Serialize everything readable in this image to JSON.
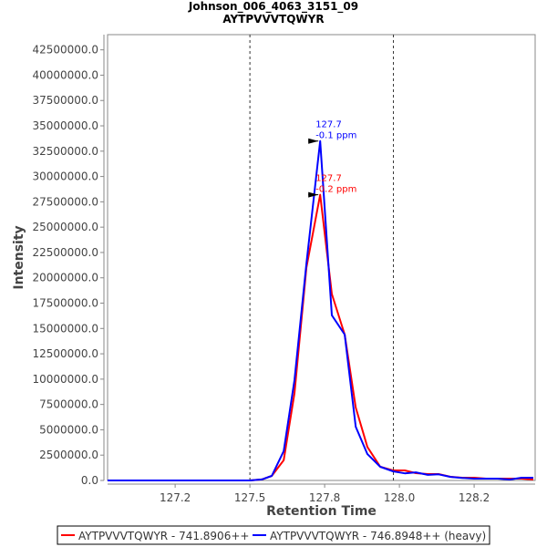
{
  "chart_data": {
    "type": "line",
    "title": "Johnson_006_4063_3151_09",
    "subtitle": "AYTPVVVTQWYR",
    "xlabel": "Retention Time",
    "ylabel": "Intensity",
    "xlim": [
      127.024,
      128.454
    ],
    "ylim": [
      0,
      44000000
    ],
    "x_ticks": [
      127.25,
      127.5,
      127.75,
      128.0,
      128.25
    ],
    "x_tick_labels": [
      "127.2",
      "127.5",
      "127.8",
      "128.0",
      "128.2"
    ],
    "y_ticks": [
      0,
      2500000,
      5000000,
      7500000,
      10000000,
      12500000,
      15000000,
      17500000,
      20000000,
      22500000,
      25000000,
      27500000,
      30000000,
      32500000,
      35000000,
      37500000,
      40000000,
      42500000
    ],
    "y_tick_labels": [
      "0.0",
      "2500000.0",
      "5000000.0",
      "7500000.0",
      "10000000.0",
      "12500000.0",
      "15000000.0",
      "17500000.0",
      "20000000.0",
      "22500000.0",
      "25000000.0",
      "27500000.0",
      "30000000.0",
      "32500000.0",
      "35000000.0",
      "37500000.0",
      "40000000.0",
      "42500000.0"
    ],
    "grid": false,
    "vertical_markers": [
      127.5,
      127.98
    ],
    "x": [
      127.024,
      127.1,
      127.2,
      127.3,
      127.4,
      127.5,
      127.54,
      127.573,
      127.613,
      127.649,
      127.689,
      127.735,
      127.774,
      127.817,
      127.854,
      127.893,
      127.936,
      127.979,
      128.018,
      128.055,
      128.095,
      128.131,
      128.171,
      128.21,
      128.25,
      128.29,
      128.329,
      128.369,
      128.409,
      128.448
    ],
    "series": [
      {
        "name": "AYTPVVVTQWYR - 741.8906++",
        "color": "#ff0000",
        "values": [
          0,
          0,
          0,
          0,
          0,
          0,
          100000,
          450000,
          2000000,
          8600000,
          21000000,
          28200000,
          18400000,
          14400000,
          7200000,
          3300000,
          1350000,
          990000,
          990000,
          720000,
          630000,
          630000,
          360000,
          270000,
          270000,
          180000,
          180000,
          180000,
          180000,
          90000
        ],
        "peak_annotation": {
          "x": 127.735,
          "y": 28200000,
          "label_rt": "127.7",
          "label_ppm": "-0.2 ppm"
        }
      },
      {
        "name": "AYTPVVVTQWYR - 746.8948++ (heavy)",
        "color": "#0000ff",
        "values": [
          0,
          0,
          0,
          0,
          0,
          0,
          100000,
          450000,
          2900000,
          9900000,
          21400000,
          33500000,
          16300000,
          14400000,
          5300000,
          2600000,
          1350000,
          900000,
          700000,
          800000,
          550000,
          600000,
          350000,
          250000,
          180000,
          180000,
          180000,
          90000,
          270000,
          270000
        ],
        "peak_annotation": {
          "x": 127.735,
          "y": 33500000,
          "label_rt": "127.7",
          "label_ppm": "-0.1 ppm"
        }
      }
    ],
    "legend": "bottom"
  }
}
